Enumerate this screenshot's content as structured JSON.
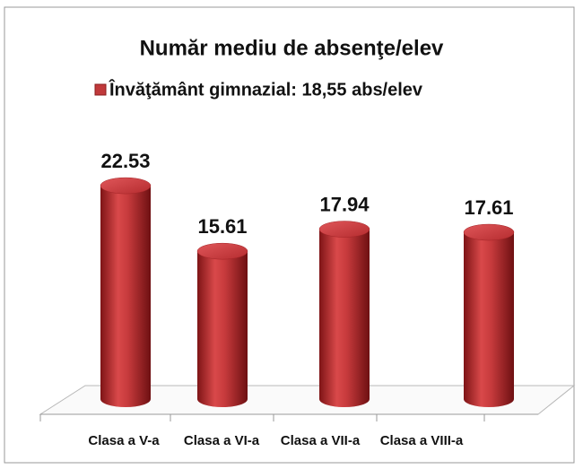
{
  "chart_data": {
    "type": "bar",
    "title": "Număr mediu de absenţe/elev",
    "categories": [
      "Clasa a V-a",
      "Clasa a VI-a",
      "Clasa a VII-a",
      "Clasa a VIII-a"
    ],
    "series": [
      {
        "name": "Învăţământ gimnazial: 18,55 abs/elev",
        "color": "#c0393b",
        "values": [
          22.53,
          15.61,
          17.94,
          17.61
        ]
      }
    ]
  }
}
